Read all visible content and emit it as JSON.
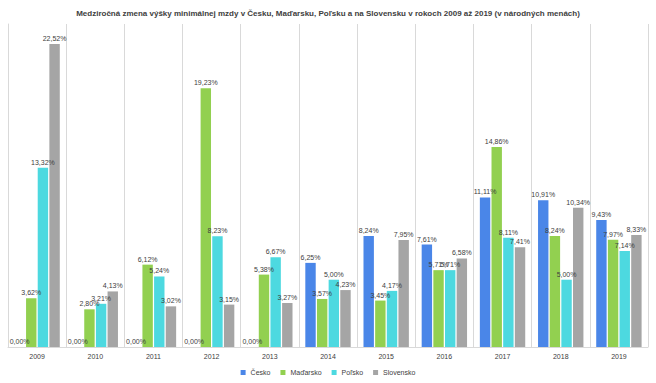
{
  "chart_data": {
    "type": "bar",
    "title": "Medziročná zmena výšky minimálnej mzdy v Česku, Maďarsku, Poľsku a na Slovensku v rokoch 2009 až 2019 (v národných menách)",
    "categories": [
      "2009",
      "2010",
      "2011",
      "2012",
      "2013",
      "2014",
      "2015",
      "2016",
      "2017",
      "2018",
      "2019"
    ],
    "series": [
      {
        "name": "Česko",
        "color": "#4a86e8",
        "values": [
          0,
          0,
          0,
          0,
          0,
          6.25,
          8.24,
          7.61,
          11.11,
          10.91,
          9.43
        ],
        "value_labels": [
          "0,00%",
          "0,00%",
          "0,00%",
          "0,00%",
          "0,00%",
          "6,25%",
          "8,24%",
          "7,61%",
          "11,11%",
          "10,91%",
          "9,43%"
        ]
      },
      {
        "name": "Maďarsko",
        "color": "#92d050",
        "values": [
          3.62,
          2.8,
          6.12,
          19.23,
          5.38,
          3.57,
          3.45,
          5.71,
          14.86,
          8.24,
          7.97
        ],
        "value_labels": [
          "3,62%",
          "2,80%",
          "6,12%",
          "19,23%",
          "5,38%",
          "3,57%",
          "3,45%",
          "5,71%",
          "14,86%",
          "8,24%",
          "7,97%"
        ]
      },
      {
        "name": "Poľsko",
        "color": "#4dd9e0",
        "values": [
          13.32,
          3.21,
          5.24,
          8.23,
          6.67,
          5.0,
          4.17,
          5.71,
          8.11,
          5.0,
          7.14
        ],
        "value_labels": [
          "13,32%",
          "3,21%",
          "5,24%",
          "8,23%",
          "6,67%",
          "5,00%",
          "4,17%",
          "5,71%",
          "8,11%",
          "5,00%",
          "7,14%"
        ]
      },
      {
        "name": "Slovensko",
        "color": "#a5a5a5",
        "values": [
          22.52,
          4.13,
          3.02,
          3.15,
          3.27,
          4.23,
          7.95,
          6.58,
          7.41,
          10.34,
          8.33
        ],
        "value_labels": [
          "22,52%",
          "4,13%",
          "3,02%",
          "3,15%",
          "3,27%",
          "4,23%",
          "7,95%",
          "6,58%",
          "7,41%",
          "10,34%",
          "8,33%"
        ]
      }
    ],
    "ylim": [
      0,
      24
    ],
    "grid": true,
    "legend": "bottom",
    "data_labels": true,
    "tick_labels": "x"
  }
}
